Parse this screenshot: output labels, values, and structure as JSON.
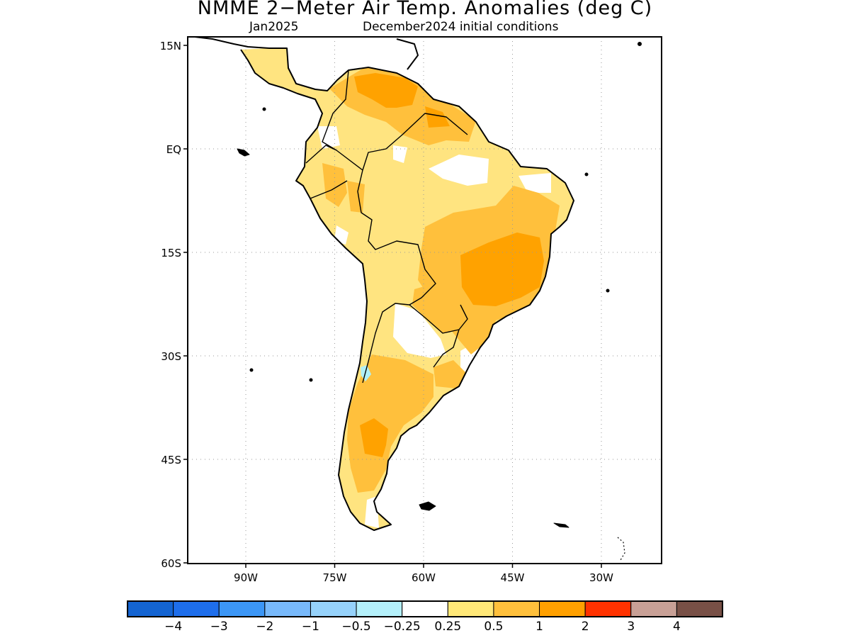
{
  "title": "NMME 2−Meter Air Temp. Anomalies (deg C)",
  "subtitle_left": "Jan2025",
  "subtitle_right": "December2024 initial conditions",
  "colors": {
    "frame": "#000000",
    "grid": "#9a9a9a",
    "coast": "#000000",
    "yellow": "#ffe480",
    "light_orange": "#ffc03c",
    "orange": "#ffa200",
    "light_blue": "#b0f0f8"
  },
  "map": {
    "lat_ticks": [
      {
        "value": 15,
        "label": "15N"
      },
      {
        "value": 0,
        "label": "EQ"
      },
      {
        "value": -15,
        "label": "15S"
      },
      {
        "value": -30,
        "label": "30S"
      },
      {
        "value": -45,
        "label": "45S"
      },
      {
        "value": -60,
        "label": "60S"
      }
    ],
    "lon_ticks": [
      {
        "value": -90,
        "label": "90W"
      },
      {
        "value": -75,
        "label": "75W"
      },
      {
        "value": -60,
        "label": "60W"
      },
      {
        "value": -45,
        "label": "45W"
      },
      {
        "value": -30,
        "label": "30W"
      }
    ]
  },
  "colorbar": {
    "swatches": [
      "#1464d2",
      "#1e6eeb",
      "#3c96f5",
      "#78b9fa",
      "#96d2fa",
      "#b4f0fa",
      "#ffffff",
      "#ffe878",
      "#ffc03c",
      "#ffa000",
      "#ff3200",
      "#c8a096",
      "#785046"
    ],
    "labels": [
      "−4",
      "−3",
      "−2",
      "−1",
      "−0.5",
      "−0.25",
      "0.25",
      "0.5",
      "1",
      "2",
      "3",
      "4"
    ]
  }
}
